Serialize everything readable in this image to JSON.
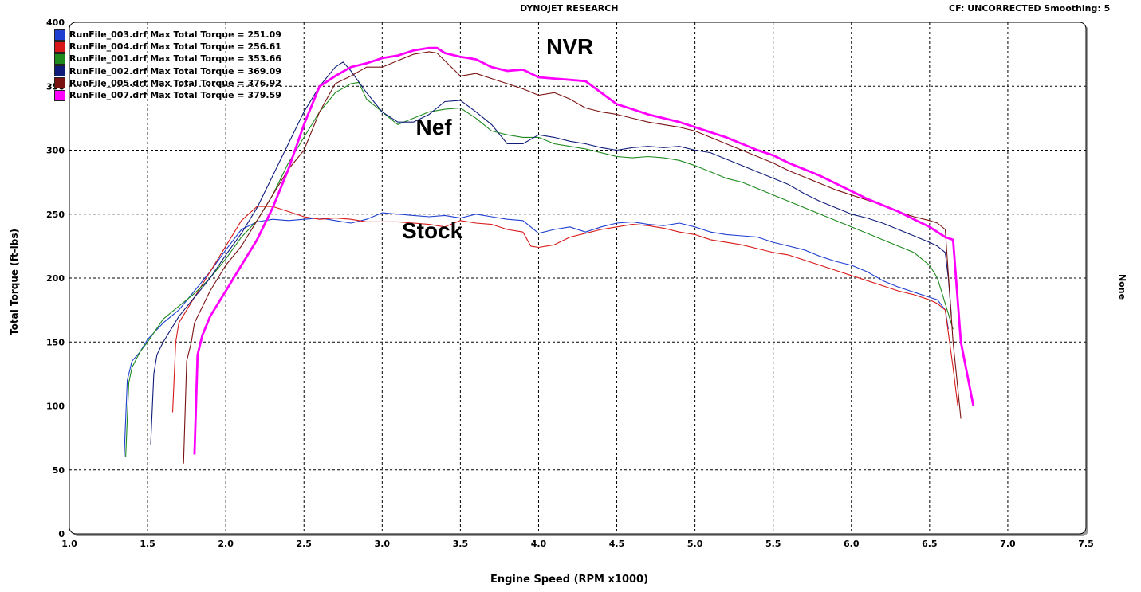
{
  "header": {
    "center_title": "DYNOJET RESEARCH",
    "right_info": "CF: UNCORRECTED  Smoothing: 5",
    "right_side_label": "None"
  },
  "chart_data": {
    "type": "line",
    "title": "DYNOJET RESEARCH",
    "xlabel": "Engine Speed (RPM x1000)",
    "ylabel": "Total Torque (ft-lbs)",
    "xlim": [
      1.0,
      7.5
    ],
    "ylim": [
      0,
      400
    ],
    "x_ticks": [
      "1.0",
      "1.5",
      "2.0",
      "2.5",
      "3.0",
      "3.5",
      "4.0",
      "4.5",
      "5.0",
      "5.5",
      "6.0",
      "6.5",
      "7.0",
      "7.5"
    ],
    "y_ticks": [
      "0",
      "50",
      "100",
      "150",
      "200",
      "250",
      "300",
      "350",
      "400"
    ],
    "grid": true,
    "legend_position": "top-left",
    "annotations": [
      {
        "text": "NVR",
        "x": 4.2,
        "y": 375
      },
      {
        "text": "Nef",
        "x": 3.33,
        "y": 312
      },
      {
        "text": "Stock",
        "x": 3.32,
        "y": 231
      }
    ],
    "series": [
      {
        "name": "RunFile_003.drf Max Total Torque = 251.09",
        "color": "#1f3fd0",
        "x": [
          1.35,
          1.37,
          1.4,
          1.45,
          1.5,
          1.6,
          1.7,
          1.8,
          1.9,
          2.0,
          2.1,
          2.2,
          2.3,
          2.4,
          2.5,
          2.6,
          2.7,
          2.8,
          2.9,
          3.0,
          3.1,
          3.2,
          3.3,
          3.4,
          3.5,
          3.6,
          3.7,
          3.8,
          3.9,
          4.0,
          4.1,
          4.2,
          4.3,
          4.4,
          4.5,
          4.6,
          4.7,
          4.8,
          4.9,
          5.0,
          5.1,
          5.2,
          5.3,
          5.4,
          5.5,
          5.6,
          5.7,
          5.8,
          5.9,
          6.0,
          6.1,
          6.2,
          6.3,
          6.4,
          6.5,
          6.55,
          6.6,
          6.62
        ],
        "y": [
          60,
          120,
          135,
          142,
          152,
          165,
          175,
          190,
          205,
          222,
          238,
          244,
          246,
          245,
          246,
          247,
          245,
          243,
          246,
          251,
          250,
          249,
          248,
          249,
          247,
          250,
          248,
          246,
          245,
          235,
          238,
          240,
          236,
          240,
          243,
          244,
          242,
          241,
          243,
          240,
          236,
          234,
          233,
          232,
          228,
          225,
          222,
          217,
          213,
          210,
          205,
          198,
          193,
          189,
          185,
          183,
          175,
          160
        ]
      },
      {
        "name": "RunFile_004.drf Max Total Torque = 256.61",
        "color": "#d81818",
        "x": [
          1.66,
          1.68,
          1.7,
          1.8,
          1.9,
          2.0,
          2.1,
          2.2,
          2.3,
          2.4,
          2.5,
          2.6,
          2.7,
          2.8,
          2.9,
          3.0,
          3.1,
          3.2,
          3.3,
          3.4,
          3.5,
          3.6,
          3.7,
          3.8,
          3.9,
          3.95,
          4.0,
          4.1,
          4.2,
          4.3,
          4.4,
          4.5,
          4.6,
          4.7,
          4.8,
          4.9,
          5.0,
          5.1,
          5.2,
          5.3,
          5.4,
          5.5,
          5.6,
          5.7,
          5.8,
          5.9,
          6.0,
          6.1,
          6.2,
          6.3,
          6.4,
          6.5,
          6.55,
          6.6,
          6.65,
          6.68
        ],
        "y": [
          95,
          150,
          165,
          185,
          205,
          225,
          245,
          256,
          256,
          252,
          248,
          246,
          247,
          246,
          244,
          244,
          244,
          243,
          242,
          240,
          245,
          243,
          242,
          238,
          236,
          225,
          224,
          226,
          232,
          235,
          238,
          240,
          242,
          241,
          239,
          236,
          234,
          230,
          228,
          226,
          223,
          220,
          218,
          214,
          210,
          206,
          202,
          198,
          194,
          190,
          187,
          183,
          180,
          175,
          130,
          100
        ]
      },
      {
        "name": "RunFile_001.drf Max Total Torque = 353.66",
        "color": "#1e8a1e",
        "x": [
          1.36,
          1.38,
          1.4,
          1.45,
          1.5,
          1.6,
          1.7,
          1.8,
          1.9,
          2.0,
          2.1,
          2.2,
          2.3,
          2.4,
          2.5,
          2.6,
          2.7,
          2.8,
          2.85,
          2.9,
          3.0,
          3.1,
          3.2,
          3.3,
          3.4,
          3.5,
          3.6,
          3.7,
          3.8,
          3.9,
          4.0,
          4.1,
          4.2,
          4.3,
          4.4,
          4.5,
          4.6,
          4.7,
          4.8,
          4.9,
          5.0,
          5.1,
          5.2,
          5.3,
          5.4,
          5.5,
          5.6,
          5.7,
          5.8,
          5.9,
          6.0,
          6.1,
          6.2,
          6.3,
          6.4,
          6.5,
          6.55,
          6.6,
          6.65
        ],
        "y": [
          60,
          118,
          130,
          142,
          150,
          168,
          178,
          188,
          200,
          215,
          232,
          245,
          265,
          290,
          310,
          330,
          345,
          352,
          353,
          340,
          330,
          320,
          325,
          330,
          332,
          333,
          325,
          315,
          312,
          310,
          310,
          305,
          303,
          301,
          298,
          295,
          294,
          295,
          294,
          292,
          288,
          283,
          278,
          275,
          270,
          265,
          260,
          255,
          250,
          245,
          240,
          235,
          230,
          225,
          220,
          210,
          200,
          180,
          160
        ]
      },
      {
        "name": "RunFile_002.drf Max Total Torque = 369.09",
        "color": "#101c7a",
        "x": [
          1.52,
          1.54,
          1.56,
          1.6,
          1.7,
          1.8,
          1.9,
          2.0,
          2.1,
          2.2,
          2.3,
          2.4,
          2.5,
          2.6,
          2.7,
          2.75,
          2.8,
          2.9,
          3.0,
          3.1,
          3.2,
          3.3,
          3.4,
          3.5,
          3.6,
          3.7,
          3.8,
          3.9,
          4.0,
          4.1,
          4.2,
          4.3,
          4.4,
          4.5,
          4.6,
          4.7,
          4.8,
          4.9,
          5.0,
          5.1,
          5.2,
          5.3,
          5.4,
          5.5,
          5.6,
          5.7,
          5.8,
          5.9,
          6.0,
          6.1,
          6.2,
          6.3,
          6.4,
          6.5,
          6.55,
          6.6,
          6.62,
          6.64
        ],
        "y": [
          70,
          125,
          140,
          150,
          170,
          185,
          200,
          218,
          235,
          255,
          280,
          305,
          330,
          350,
          365,
          369,
          362,
          345,
          330,
          322,
          322,
          328,
          338,
          339,
          330,
          320,
          305,
          305,
          312,
          310,
          307,
          305,
          302,
          300,
          302,
          303,
          302,
          303,
          300,
          298,
          293,
          288,
          283,
          278,
          273,
          266,
          260,
          255,
          250,
          247,
          243,
          238,
          233,
          228,
          225,
          220,
          200,
          170
        ]
      },
      {
        "name": "RunFile_005.drf Max Total Torque = 376.92",
        "color": "#7a1212",
        "x": [
          1.73,
          1.75,
          1.78,
          1.8,
          1.9,
          2.0,
          2.1,
          2.2,
          2.3,
          2.4,
          2.5,
          2.6,
          2.7,
          2.8,
          2.9,
          3.0,
          3.1,
          3.2,
          3.3,
          3.35,
          3.4,
          3.5,
          3.6,
          3.7,
          3.8,
          3.9,
          4.0,
          4.1,
          4.2,
          4.3,
          4.4,
          4.5,
          4.6,
          4.7,
          4.8,
          4.9,
          5.0,
          5.1,
          5.2,
          5.3,
          5.4,
          5.5,
          5.6,
          5.7,
          5.8,
          5.9,
          6.0,
          6.1,
          6.2,
          6.3,
          6.4,
          6.5,
          6.55,
          6.6,
          6.65,
          6.7
        ],
        "y": [
          55,
          135,
          150,
          165,
          190,
          210,
          225,
          245,
          265,
          285,
          300,
          330,
          352,
          358,
          365,
          365,
          370,
          375,
          377,
          376,
          370,
          358,
          360,
          356,
          352,
          348,
          343,
          345,
          340,
          333,
          330,
          328,
          325,
          322,
          320,
          318,
          315,
          310,
          305,
          300,
          295,
          290,
          284,
          279,
          274,
          269,
          265,
          261,
          257,
          252,
          248,
          245,
          243,
          238,
          150,
          90
        ]
      },
      {
        "name": "RunFile_007.drf Max Total Torque = 379.59",
        "color": "#ff00ff",
        "x": [
          1.8,
          1.82,
          1.85,
          1.9,
          2.0,
          2.1,
          2.2,
          2.3,
          2.4,
          2.5,
          2.6,
          2.7,
          2.8,
          2.9,
          3.0,
          3.1,
          3.2,
          3.3,
          3.35,
          3.4,
          3.5,
          3.6,
          3.7,
          3.8,
          3.9,
          4.0,
          4.1,
          4.2,
          4.3,
          4.4,
          4.5,
          4.6,
          4.7,
          4.8,
          4.9,
          5.0,
          5.1,
          5.2,
          5.3,
          5.4,
          5.5,
          5.6,
          5.7,
          5.8,
          5.9,
          6.0,
          6.1,
          6.2,
          6.3,
          6.4,
          6.5,
          6.55,
          6.6,
          6.65,
          6.7,
          6.78
        ],
        "y": [
          62,
          140,
          155,
          170,
          190,
          210,
          230,
          255,
          285,
          320,
          350,
          358,
          365,
          368,
          372,
          374,
          378,
          380,
          380,
          376,
          373,
          371,
          365,
          362,
          363,
          357,
          356,
          355,
          354,
          345,
          336,
          332,
          328,
          325,
          322,
          318,
          314,
          310,
          305,
          300,
          296,
          290,
          285,
          280,
          274,
          268,
          262,
          257,
          252,
          246,
          240,
          236,
          232,
          230,
          150,
          100
        ]
      }
    ]
  }
}
